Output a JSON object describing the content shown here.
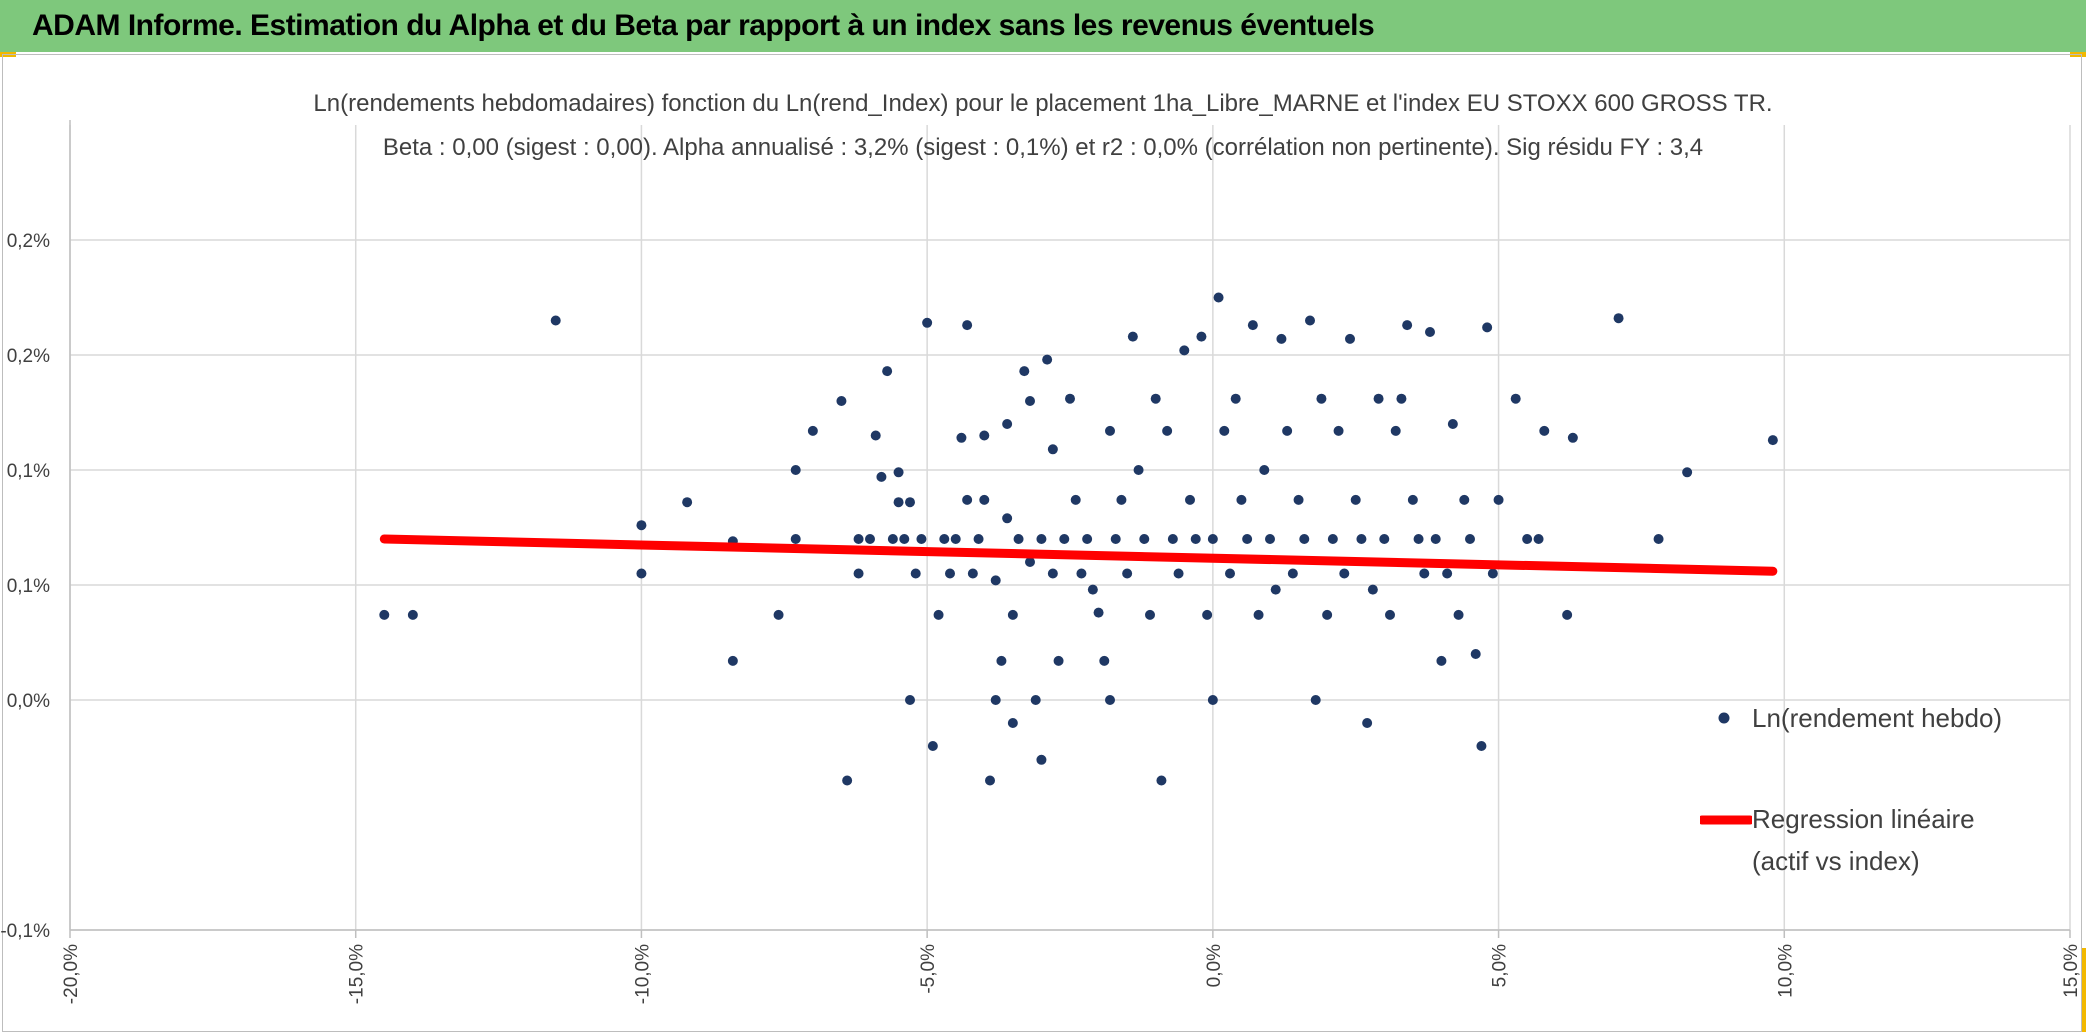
{
  "header": {
    "title": "ADAM Informe. Estimation du Alpha et du Beta par rapport à un index sans les revenus éventuels"
  },
  "colors": {
    "header_bg": "#7ec87c",
    "corner_accent": "#f2b800",
    "points": "#1f3864",
    "regression": "#ff0000",
    "grid": "#d9d9d9"
  },
  "chart_data": {
    "type": "scatter",
    "title": "Ln(rendements hebdomadaires) fonction du Ln(rend_Index) pour le placement 1ha_Libre_MARNE et l'index EU STOXX 600 GROSS TR.",
    "subtitle": "Beta : 0,00 (sigest : 0,00). Alpha annualisé : 3,2% (sigest : 0,1%) et r2 : 0,0% (corrélation non pertinente). Sig résidu FY : 3,4",
    "xlabel": "",
    "ylabel": "",
    "xlim": [
      -0.2,
      0.15
    ],
    "ylim": [
      -0.001,
      0.0025
    ],
    "x_ticks": [
      -0.2,
      -0.15,
      -0.1,
      -0.05,
      0.0,
      0.05,
      0.1,
      0.15
    ],
    "x_tick_labels": [
      "-20,0%",
      "-15,0%",
      "-10,0%",
      "-5,0%",
      "0,0%",
      "5,0%",
      "10,0%",
      "15,0%"
    ],
    "y_ticks": [
      -0.001,
      0.0,
      0.0005,
      0.001,
      0.0015,
      0.002
    ],
    "y_tick_labels": [
      "-0,1%",
      "0,0%",
      "0,1%",
      "0,1%",
      "0,2%",
      "0,2%"
    ],
    "grid": true,
    "legend_position": "right",
    "series": [
      {
        "name": "Ln(rendement hebdo)",
        "kind": "scatter",
        "color": "#1f3864",
        "points": [
          [
            -0.145,
            0.00037
          ],
          [
            -0.14,
            0.00037
          ],
          [
            -0.115,
            0.00165
          ],
          [
            -0.1,
            0.00076
          ],
          [
            -0.1,
            0.00055
          ],
          [
            -0.092,
            0.00086
          ],
          [
            -0.084,
            0.00069
          ],
          [
            -0.084,
            0.00017
          ],
          [
            -0.076,
            0.00037
          ],
          [
            -0.073,
            0.0007
          ],
          [
            -0.073,
            0.001
          ],
          [
            -0.07,
            0.00117
          ],
          [
            -0.065,
            0.0013
          ],
          [
            -0.064,
            -0.00035
          ],
          [
            -0.062,
            0.0007
          ],
          [
            -0.062,
            0.00055
          ],
          [
            -0.06,
            0.0007
          ],
          [
            -0.059,
            0.00115
          ],
          [
            -0.058,
            0.00097
          ],
          [
            -0.057,
            0.00143
          ],
          [
            -0.056,
            0.0007
          ],
          [
            -0.055,
            0.00099
          ],
          [
            -0.055,
            0.00086
          ],
          [
            -0.054,
            0.0007
          ],
          [
            -0.053,
            0.00086
          ],
          [
            -0.053,
            0.0
          ],
          [
            -0.052,
            0.00055
          ],
          [
            -0.051,
            0.0007
          ],
          [
            -0.05,
            0.00164
          ],
          [
            -0.049,
            -0.0002
          ],
          [
            -0.048,
            0.00037
          ],
          [
            -0.047,
            0.0007
          ],
          [
            -0.046,
            0.00055
          ],
          [
            -0.045,
            0.0007
          ],
          [
            -0.044,
            0.00114
          ],
          [
            -0.043,
            0.00087
          ],
          [
            -0.043,
            0.00163
          ],
          [
            -0.042,
            0.00055
          ],
          [
            -0.041,
            0.0007
          ],
          [
            -0.04,
            0.00087
          ],
          [
            -0.04,
            0.00115
          ],
          [
            -0.039,
            -0.00035
          ],
          [
            -0.038,
            0.00052
          ],
          [
            -0.038,
            0.0
          ],
          [
            -0.037,
            0.00017
          ],
          [
            -0.036,
            0.00079
          ],
          [
            -0.036,
            0.0012
          ],
          [
            -0.035,
            0.00037
          ],
          [
            -0.035,
            -0.0001
          ],
          [
            -0.034,
            0.0007
          ],
          [
            -0.033,
            0.00143
          ],
          [
            -0.032,
            0.0006
          ],
          [
            -0.032,
            0.0013
          ],
          [
            -0.031,
            0.0
          ],
          [
            -0.03,
            0.0007
          ],
          [
            -0.03,
            -0.00026
          ],
          [
            -0.029,
            0.00148
          ],
          [
            -0.028,
            0.00109
          ],
          [
            -0.028,
            0.00055
          ],
          [
            -0.027,
            0.00017
          ],
          [
            -0.026,
            0.0007
          ],
          [
            -0.025,
            0.00131
          ],
          [
            -0.024,
            0.00087
          ],
          [
            -0.023,
            0.00055
          ],
          [
            -0.022,
            0.0007
          ],
          [
            -0.021,
            0.00048
          ],
          [
            -0.02,
            0.00038
          ],
          [
            -0.019,
            0.00017
          ],
          [
            -0.018,
            0.0
          ],
          [
            -0.018,
            0.00117
          ],
          [
            -0.017,
            0.0007
          ],
          [
            -0.016,
            0.00087
          ],
          [
            -0.015,
            0.00055
          ],
          [
            -0.014,
            0.00158
          ],
          [
            -0.013,
            0.001
          ],
          [
            -0.012,
            0.0007
          ],
          [
            -0.011,
            0.00037
          ],
          [
            -0.01,
            0.00131
          ],
          [
            -0.009,
            -0.00035
          ],
          [
            -0.008,
            0.00117
          ],
          [
            -0.007,
            0.0007
          ],
          [
            -0.006,
            0.00055
          ],
          [
            -0.005,
            0.00152
          ],
          [
            -0.004,
            0.00087
          ],
          [
            -0.003,
            0.0007
          ],
          [
            -0.002,
            0.00158
          ],
          [
            -0.001,
            0.00037
          ],
          [
            0.0,
            0.0007
          ],
          [
            0.0,
            0.0
          ],
          [
            0.001,
            0.00175
          ],
          [
            0.002,
            0.00117
          ],
          [
            0.003,
            0.00055
          ],
          [
            0.004,
            0.00131
          ],
          [
            0.005,
            0.00087
          ],
          [
            0.006,
            0.0007
          ],
          [
            0.007,
            0.00163
          ],
          [
            0.008,
            0.00037
          ],
          [
            0.009,
            0.001
          ],
          [
            0.01,
            0.0007
          ],
          [
            0.011,
            0.00048
          ],
          [
            0.012,
            0.00157
          ],
          [
            0.013,
            0.00117
          ],
          [
            0.014,
            0.00055
          ],
          [
            0.015,
            0.00087
          ],
          [
            0.016,
            0.0007
          ],
          [
            0.017,
            0.00165
          ],
          [
            0.018,
            0.0
          ],
          [
            0.019,
            0.00131
          ],
          [
            0.02,
            0.00037
          ],
          [
            0.021,
            0.0007
          ],
          [
            0.022,
            0.00117
          ],
          [
            0.023,
            0.00055
          ],
          [
            0.024,
            0.00157
          ],
          [
            0.025,
            0.00087
          ],
          [
            0.026,
            0.0007
          ],
          [
            0.027,
            -0.0001
          ],
          [
            0.028,
            0.00048
          ],
          [
            0.029,
            0.00131
          ],
          [
            0.03,
            0.0007
          ],
          [
            0.031,
            0.00037
          ],
          [
            0.032,
            0.00117
          ],
          [
            0.033,
            0.00131
          ],
          [
            0.034,
            0.00163
          ],
          [
            0.035,
            0.00087
          ],
          [
            0.036,
            0.0007
          ],
          [
            0.037,
            0.00055
          ],
          [
            0.038,
            0.0016
          ],
          [
            0.039,
            0.0007
          ],
          [
            0.04,
            0.00017
          ],
          [
            0.041,
            0.00055
          ],
          [
            0.042,
            0.0012
          ],
          [
            0.043,
            0.00037
          ],
          [
            0.044,
            0.00087
          ],
          [
            0.045,
            0.0007
          ],
          [
            0.046,
            0.0002
          ],
          [
            0.047,
            -0.0002
          ],
          [
            0.048,
            0.00162
          ],
          [
            0.049,
            0.00055
          ],
          [
            0.05,
            0.00087
          ],
          [
            0.053,
            0.00131
          ],
          [
            0.055,
            0.0007
          ],
          [
            0.057,
            0.0007
          ],
          [
            0.058,
            0.00117
          ],
          [
            0.062,
            0.00037
          ],
          [
            0.063,
            0.00114
          ],
          [
            0.071,
            0.00166
          ],
          [
            0.078,
            0.0007
          ],
          [
            0.083,
            0.00099
          ],
          [
            0.098,
            0.00113
          ]
        ]
      },
      {
        "name": "Regression linéaire (actif vs index)",
        "kind": "line",
        "color": "#ff0000",
        "points": [
          [
            -0.145,
            0.0007
          ],
          [
            0.098,
            0.00056
          ]
        ]
      }
    ]
  },
  "legend": {
    "scatter_label": "Ln(rendement hebdo)",
    "line_label_1": "Regression linéaire",
    "line_label_2": "(actif vs index)"
  }
}
